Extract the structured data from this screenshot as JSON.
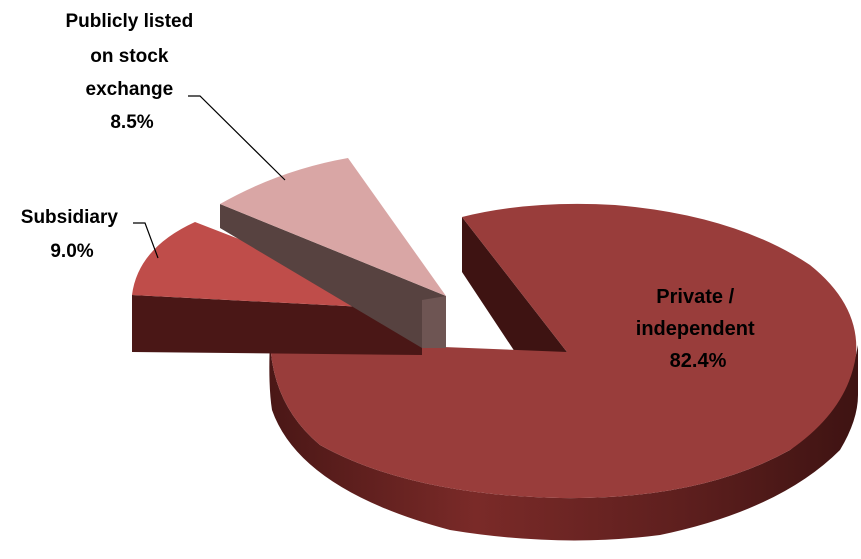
{
  "chart_data": {
    "type": "pie",
    "style": "3d-exploded",
    "title": "",
    "legend": "none",
    "slices": [
      {
        "name": "Private / independent",
        "label_lines": [
          "Private /",
          "independent"
        ],
        "value": 82.4,
        "value_label": "82.4%",
        "color": "#993d3b"
      },
      {
        "name": "Subsidiary",
        "label_lines": [
          "Subsidiary"
        ],
        "value": 9.0,
        "value_label": "9.0%",
        "color": "#bf4d4a"
      },
      {
        "name": "Publicly listed on stock exchange",
        "label_lines": [
          "Publicly listed",
          "on stock",
          "exchange"
        ],
        "value": 8.5,
        "value_label": "8.5%",
        "color": "#d9a6a5"
      }
    ]
  }
}
